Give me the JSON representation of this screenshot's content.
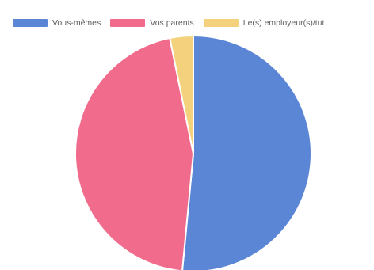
{
  "chart_data": {
    "type": "pie",
    "legend_position": "top",
    "categories": [
      "Vous-mêmes",
      "Vos parents",
      "Le(s) employeur(s)/tut..."
    ],
    "values": [
      51.5,
      45.3,
      3.2
    ],
    "colors": [
      "#5b86d6",
      "#f06b8c",
      "#f4d27d"
    ],
    "legend": {
      "items": [
        {
          "label": "Vous-mêmes",
          "color": "#5b86d6"
        },
        {
          "label": "Vos parents",
          "color": "#f06b8c"
        },
        {
          "label": "Le(s) employeur(s)/tut...",
          "color": "#f4d27d"
        }
      ]
    }
  }
}
